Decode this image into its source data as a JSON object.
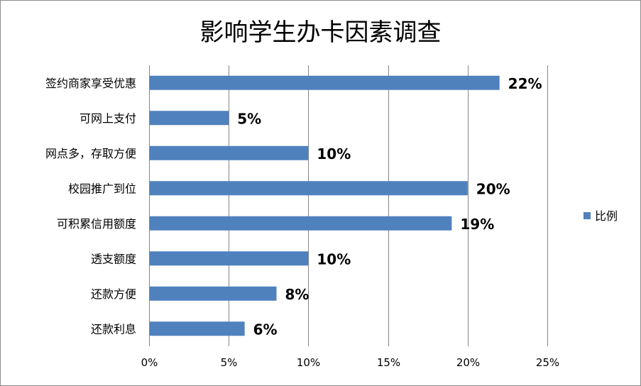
{
  "chart_data": {
    "type": "bar",
    "orientation": "horizontal",
    "title": "影响学生办卡因素调查",
    "xlabel": "",
    "ylabel": "",
    "categories": [
      "签约商家享受优惠",
      "可网上支付",
      "网点多，存取方便",
      "校园推广到位",
      "可积累信用额度",
      "透支额度",
      "还款方便",
      "还款利息"
    ],
    "series": [
      {
        "name": "比例",
        "color": "#4f81bd",
        "values": [
          22,
          5,
          10,
          20,
          19,
          10,
          8,
          6
        ],
        "labels": [
          "22%",
          "5%",
          "10%",
          "20%",
          "19%",
          "10%",
          "8%",
          "6%"
        ]
      }
    ],
    "xlim": [
      0,
      25
    ],
    "xticks": [
      0,
      5,
      10,
      15,
      20,
      25
    ],
    "xtick_labels": [
      "0%",
      "5%",
      "10%",
      "15%",
      "20%",
      "25%"
    ],
    "grid": true,
    "legend_position": "right"
  }
}
